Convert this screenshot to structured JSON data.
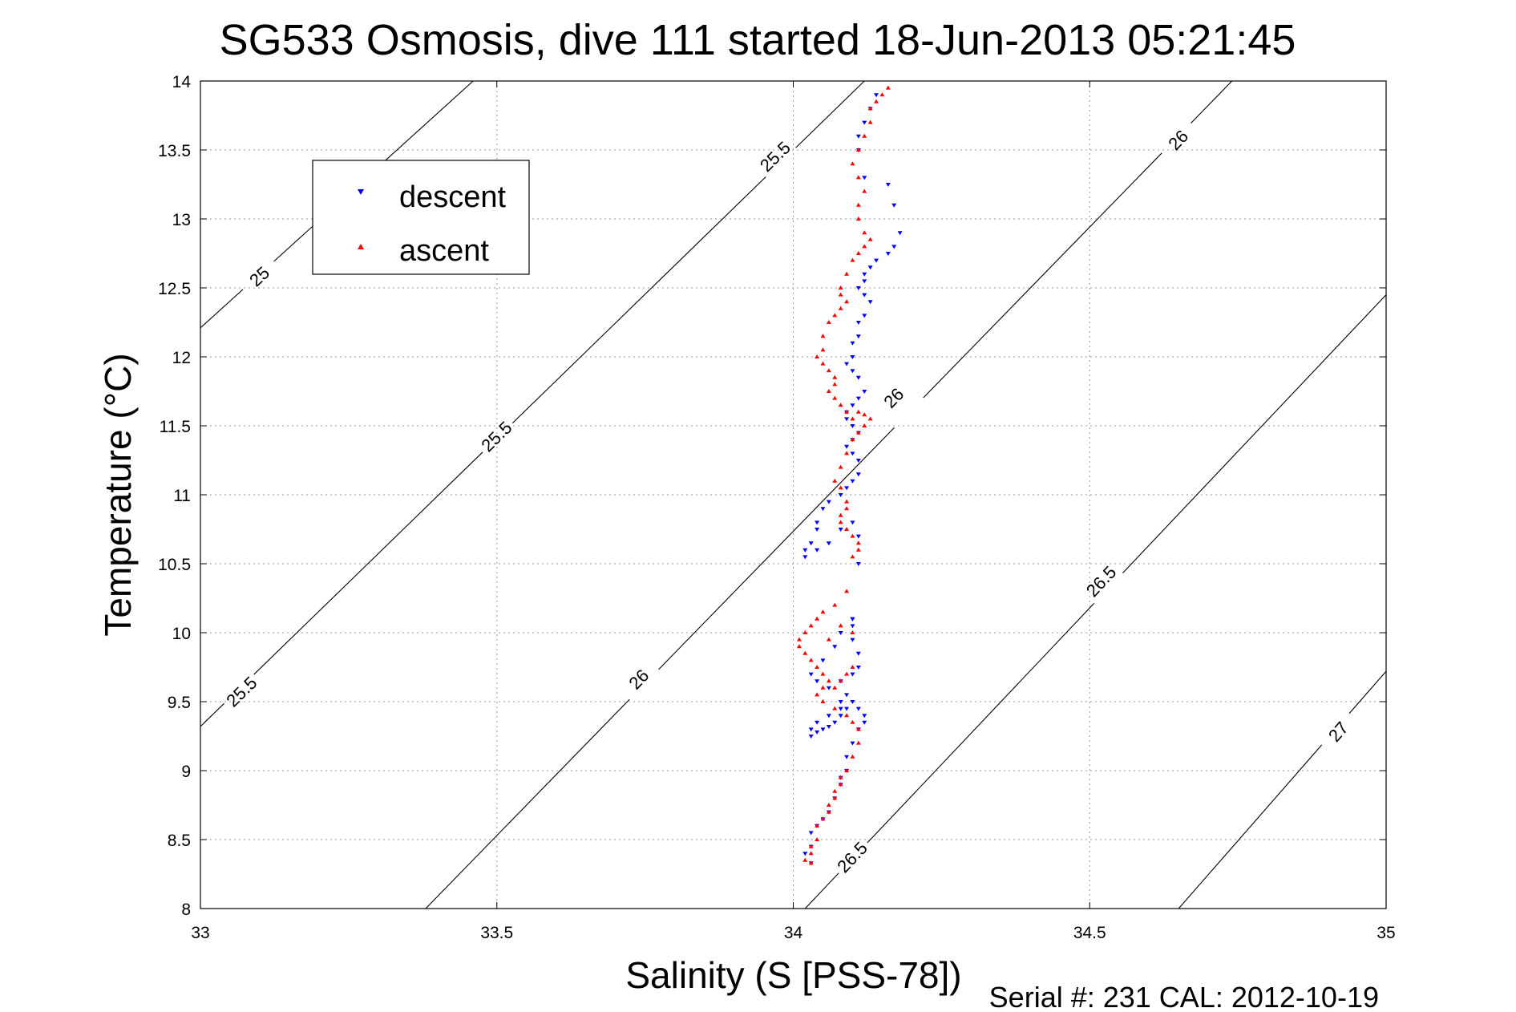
{
  "chart_data": {
    "type": "scatter",
    "title": "SG533 Osmosis, dive 111 started 18-Jun-2013 05:21:45",
    "xlabel": "Salinity (S [PSS-78])",
    "ylabel": "Temperature (°C)",
    "footer": "Serial #: 231  CAL: 2012-10-19",
    "xlim": [
      33,
      35
    ],
    "ylim": [
      8,
      14
    ],
    "grid": true,
    "legend_position": "top-left",
    "x_ticks": [
      "33",
      "33.5",
      "34",
      "34.5",
      "35"
    ],
    "y_ticks": [
      "8",
      "8.5",
      "9",
      "9.5",
      "10",
      "10.5",
      "11",
      "11.5",
      "12",
      "12.5",
      "13",
      "13.5",
      "14"
    ],
    "colors": {
      "descent": "#0000ff",
      "ascent": "#ff0000",
      "axes": "#000000",
      "grid": "#9a9a9a"
    },
    "density_contours": [
      {
        "sigma": 25,
        "points": [
          [
            33.0,
            12.21
          ],
          [
            33.46,
            14.0
          ]
        ],
        "labels": [
          {
            "text": "25",
            "s": 33.1,
            "t": 12.58
          }
        ]
      },
      {
        "sigma": 25.5,
        "points": [
          [
            33.0,
            9.32
          ],
          [
            34.12,
            14.0
          ]
        ],
        "labels": [
          {
            "text": "25.5",
            "s": 33.07,
            "t": 9.57
          },
          {
            "text": "25.5",
            "s": 33.5,
            "t": 11.42
          },
          {
            "text": "25.5",
            "s": 33.97,
            "t": 13.45
          }
        ]
      },
      {
        "sigma": 26,
        "points": [
          [
            33.38,
            8.0
          ],
          [
            34.74,
            14.0
          ]
        ],
        "labels": [
          {
            "text": "26",
            "s": 33.74,
            "t": 9.66
          },
          {
            "text": "26",
            "s": 34.17,
            "t": 11.7
          },
          {
            "text": "26",
            "s": 34.65,
            "t": 13.57
          }
        ]
      },
      {
        "sigma": 26.5,
        "points": [
          [
            34.02,
            8.0
          ],
          [
            35.0,
            12.45
          ]
        ],
        "labels": [
          {
            "text": "26.5",
            "s": 34.1,
            "t": 8.37
          },
          {
            "text": "26.5",
            "s": 34.52,
            "t": 10.37
          }
        ]
      },
      {
        "sigma": 27,
        "points": [
          [
            34.65,
            8.0
          ],
          [
            35.0,
            9.72
          ]
        ],
        "labels": [
          {
            "text": "27",
            "s": 34.92,
            "t": 9.28
          }
        ]
      }
    ],
    "series": [
      {
        "name": "descent",
        "marker": "triangle-down",
        "color": "#0000ff",
        "x": [
          34.14,
          34.13,
          34.12,
          34.11,
          34.11,
          34.12,
          34.16,
          34.17,
          34.18,
          34.17,
          34.16,
          34.14,
          34.13,
          34.12,
          34.12,
          34.11,
          34.12,
          34.13,
          34.12,
          34.11,
          34.11,
          34.1,
          34.1,
          34.09,
          34.1,
          34.11,
          34.12,
          34.11,
          34.1,
          34.09,
          34.09,
          34.1,
          34.11,
          34.1,
          34.09,
          34.1,
          34.11,
          34.11,
          34.1,
          34.09,
          34.08,
          34.06,
          34.05,
          34.04,
          34.04,
          34.03,
          34.02,
          34.02,
          34.04,
          34.06,
          34.08,
          34.1,
          34.11,
          34.11,
          34.1,
          34.1,
          34.11,
          34.11,
          34.1,
          34.08,
          34.06,
          34.04,
          34.03,
          34.05,
          34.07,
          34.08,
          34.1,
          34.1,
          34.09,
          34.08,
          34.08,
          34.06,
          34.04,
          34.03,
          34.03,
          34.04,
          34.05,
          34.06,
          34.07,
          34.08,
          34.09,
          34.1,
          34.11,
          34.12,
          34.12,
          34.11,
          34.1,
          34.09,
          34.09,
          34.08,
          34.08,
          34.07,
          34.06,
          34.05,
          34.04,
          34.03,
          34.03,
          34.02,
          34.03
        ],
        "y": [
          13.9,
          13.8,
          13.7,
          13.6,
          13.5,
          13.3,
          13.25,
          13.1,
          12.9,
          12.8,
          12.75,
          12.7,
          12.65,
          12.6,
          12.55,
          12.5,
          12.45,
          12.4,
          12.3,
          12.25,
          12.15,
          12.1,
          12.0,
          11.95,
          11.9,
          11.85,
          11.75,
          11.7,
          11.65,
          11.6,
          11.55,
          11.5,
          11.45,
          11.4,
          11.35,
          11.3,
          11.25,
          11.15,
          11.1,
          11.05,
          11.0,
          10.95,
          10.9,
          10.8,
          10.75,
          10.65,
          10.6,
          10.55,
          10.6,
          10.65,
          10.75,
          10.8,
          10.7,
          10.5,
          10.1,
          9.95,
          9.85,
          9.75,
          9.7,
          9.65,
          9.6,
          9.65,
          9.7,
          9.8,
          9.9,
          10.0,
          10.1,
          10.05,
          9.55,
          9.5,
          9.45,
          9.4,
          9.35,
          9.3,
          9.25,
          9.28,
          9.3,
          9.32,
          9.35,
          9.4,
          9.45,
          9.5,
          9.45,
          9.4,
          9.35,
          9.3,
          9.2,
          9.1,
          9.0,
          8.95,
          8.9,
          8.8,
          8.7,
          8.65,
          8.6,
          8.55,
          8.45,
          8.4,
          8.33
        ]
      },
      {
        "name": "ascent",
        "marker": "triangle-up",
        "color": "#ff0000",
        "x": [
          34.16,
          34.15,
          34.14,
          34.13,
          34.13,
          34.12,
          34.11,
          34.1,
          34.11,
          34.12,
          34.11,
          34.11,
          34.12,
          34.13,
          34.12,
          34.11,
          34.1,
          34.09,
          34.08,
          34.08,
          34.09,
          34.08,
          34.07,
          34.06,
          34.05,
          34.05,
          34.04,
          34.05,
          34.06,
          34.07,
          34.07,
          34.06,
          34.07,
          34.08,
          34.09,
          34.1,
          34.11,
          34.12,
          34.13,
          34.12,
          34.11,
          34.1,
          34.09,
          34.08,
          34.07,
          34.08,
          34.09,
          34.09,
          34.08,
          34.08,
          34.09,
          34.1,
          34.11,
          34.11,
          34.1,
          34.09,
          34.07,
          34.05,
          34.04,
          34.03,
          34.02,
          34.01,
          34.01,
          34.02,
          34.03,
          34.04,
          34.05,
          34.06,
          34.07,
          34.08,
          34.09,
          34.1,
          34.1,
          34.08,
          34.06,
          34.05,
          34.04,
          34.05,
          34.07,
          34.09,
          34.1,
          34.11,
          34.11,
          34.1,
          34.09,
          34.08,
          34.08,
          34.07,
          34.07,
          34.06,
          34.06,
          34.05,
          34.04,
          34.04,
          34.03,
          34.03,
          34.02,
          34.03
        ],
        "y": [
          13.95,
          13.9,
          13.85,
          13.8,
          13.7,
          13.6,
          13.5,
          13.4,
          13.3,
          13.2,
          13.1,
          13.0,
          12.9,
          12.85,
          12.8,
          12.75,
          12.7,
          12.6,
          12.5,
          12.45,
          12.4,
          12.35,
          12.3,
          12.25,
          12.15,
          12.05,
          12.0,
          11.95,
          11.9,
          11.85,
          11.8,
          11.75,
          11.7,
          11.65,
          11.6,
          11.55,
          11.6,
          11.58,
          11.55,
          11.5,
          11.45,
          11.4,
          11.3,
          11.2,
          11.1,
          11.05,
          10.95,
          10.9,
          10.85,
          10.8,
          10.75,
          10.7,
          10.65,
          10.6,
          10.55,
          10.3,
          10.2,
          10.15,
          10.1,
          10.05,
          10.0,
          9.95,
          9.9,
          9.85,
          9.8,
          9.75,
          9.7,
          9.65,
          9.6,
          9.65,
          9.7,
          9.75,
          10.0,
          10.05,
          9.95,
          9.6,
          9.55,
          9.5,
          9.45,
          9.4,
          9.35,
          9.3,
          9.2,
          9.1,
          9.0,
          8.95,
          8.9,
          8.85,
          8.8,
          8.75,
          8.7,
          8.65,
          8.6,
          8.5,
          8.45,
          8.4,
          8.35,
          8.33
        ]
      }
    ]
  }
}
